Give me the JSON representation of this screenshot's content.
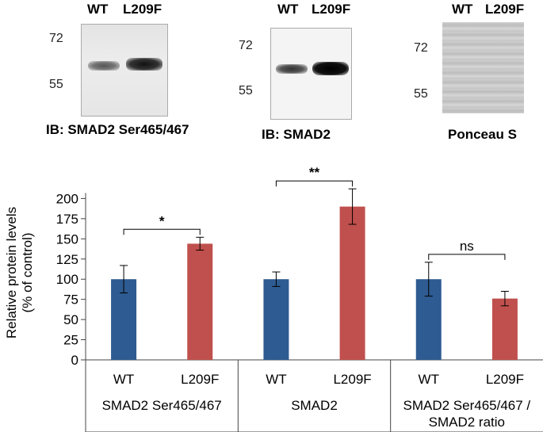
{
  "blots": [
    {
      "lanes": [
        "WT",
        "L209F"
      ],
      "markers": [
        "72",
        "55"
      ],
      "caption": "IB: SMAD2 Ser465/467"
    },
    {
      "lanes": [
        "WT",
        "L209F"
      ],
      "markers": [
        "72",
        "55"
      ],
      "caption": "IB: SMAD2"
    },
    {
      "lanes": [
        "WT",
        "L209F"
      ],
      "markers": [
        "72",
        "55"
      ],
      "caption": "Ponceau S"
    }
  ],
  "chart_data": {
    "type": "bar",
    "ylabel_line1": "Relative protein levels",
    "ylabel_line2": "(% of control)",
    "ylim": [
      0,
      225
    ],
    "yticks": [
      "0",
      "25",
      "50",
      "75",
      "100",
      "125",
      "150",
      "175",
      "200"
    ],
    "groups": [
      {
        "label": "SMAD2 Ser465/467",
        "label2": "",
        "significance": "*",
        "bars": [
          {
            "category": "WT",
            "value": 100,
            "error": 17
          },
          {
            "category": "L209F",
            "value": 144,
            "error": 8
          }
        ]
      },
      {
        "label": "SMAD2",
        "label2": "",
        "significance": "**",
        "bars": [
          {
            "category": "WT",
            "value": 100,
            "error": 9
          },
          {
            "category": "L209F",
            "value": 190,
            "error": 22
          }
        ]
      },
      {
        "label": "SMAD2 Ser465/467 /",
        "label2": "SMAD2 ratio",
        "significance": "ns",
        "bars": [
          {
            "category": "WT",
            "value": 100,
            "error": 21
          },
          {
            "category": "L209F",
            "value": 76,
            "error": 9
          }
        ]
      }
    ],
    "colors": {
      "WT": "#2e5b91",
      "L209F": "#c0504d"
    }
  }
}
